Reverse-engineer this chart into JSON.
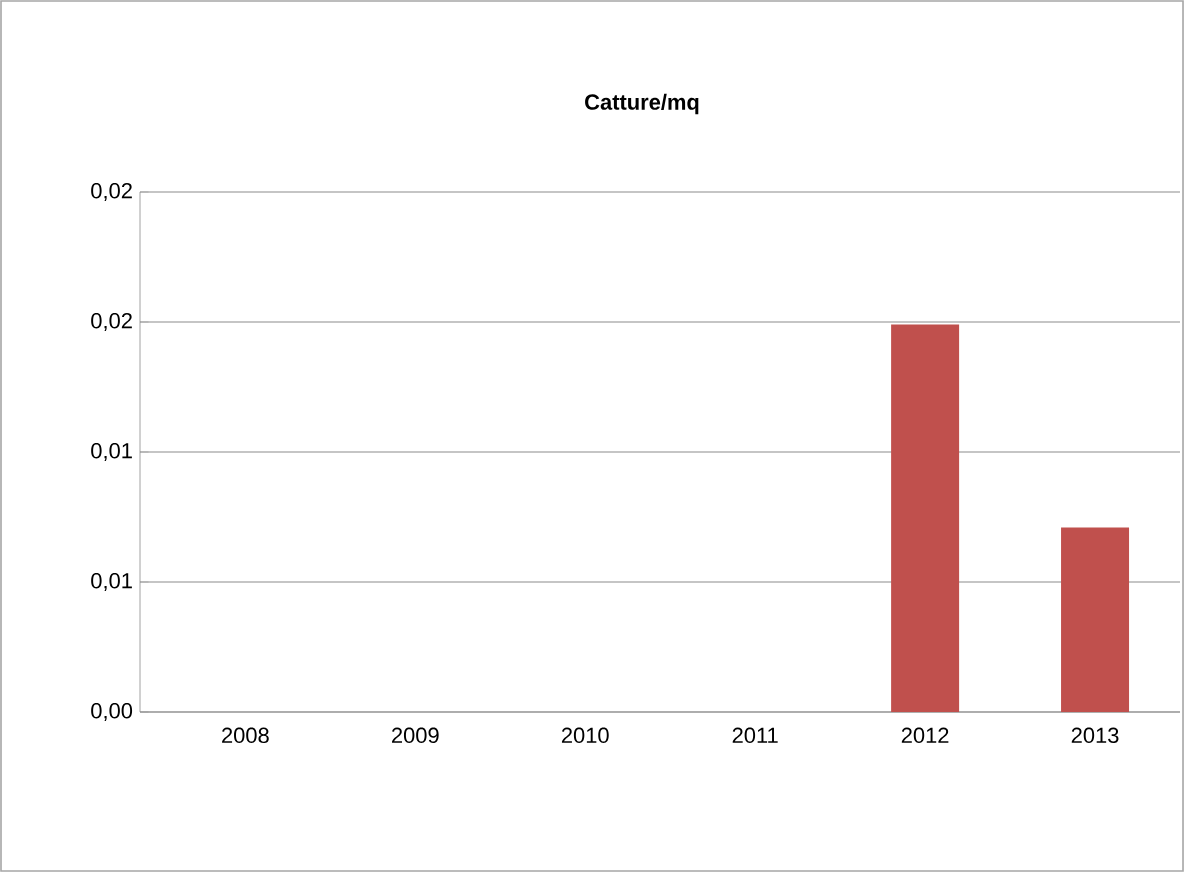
{
  "chart_data": {
    "type": "bar",
    "title": "Catture/mq",
    "categories": [
      "2008",
      "2009",
      "2010",
      "2011",
      "2012",
      "2013"
    ],
    "values": [
      0,
      0,
      0,
      0,
      0.0149,
      0.0071
    ],
    "color": "#c0504d",
    "ylim": [
      0,
      0.02
    ],
    "yticks": [
      {
        "value": 0,
        "label": "0,00"
      },
      {
        "value": 0.005,
        "label": "0,01"
      },
      {
        "value": 0.01,
        "label": "0,01"
      },
      {
        "value": 0.015,
        "label": "0,02"
      },
      {
        "value": 0.02,
        "label": "0,02"
      }
    ],
    "grid": "y"
  }
}
